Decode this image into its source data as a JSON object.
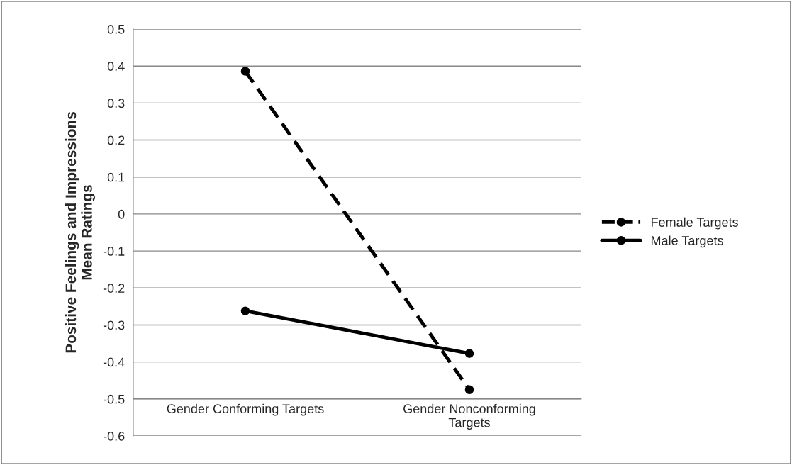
{
  "chart_data": {
    "type": "line",
    "ylabel": "Positive Feelings and Impressions\nMean Ratings",
    "categories": [
      "Gender Conforming Targets",
      "Gender Nonconforming Targets"
    ],
    "series": [
      {
        "name": "Female Targets",
        "color": "#000000",
        "values": [
          0.386,
          -0.475
        ],
        "line_style": "dashed"
      },
      {
        "name": "Male Targets",
        "color": "#000000",
        "values": [
          -0.262,
          -0.377
        ],
        "line_style": "solid"
      }
    ],
    "ylim": [
      -0.6,
      0.5
    ],
    "yticks": [
      -0.6,
      -0.5,
      -0.4,
      -0.3,
      -0.2,
      -0.1,
      0,
      0.1,
      0.2,
      0.3,
      0.4,
      0.5
    ],
    "grid": "y",
    "legend": "right",
    "marker": "circle"
  }
}
